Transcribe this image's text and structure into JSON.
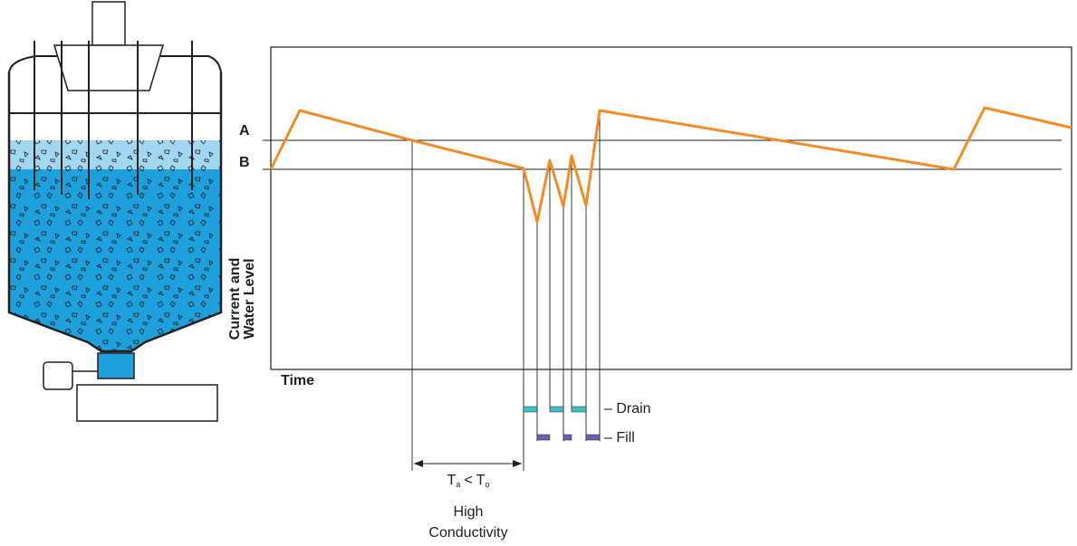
{
  "level_a": "A",
  "level_b": "B",
  "y_axis": [
    "Current and",
    "Water Level"
  ],
  "x_axis": "Time",
  "legend": {
    "drain": "– Drain",
    "fill": "– Fill"
  },
  "interval": {
    "t_a": "T",
    "a_sub": "a",
    "lt": "<",
    "t_o": "T",
    "o_sub": "o",
    "line1": "High",
    "line2": "Conductivity"
  }
}
